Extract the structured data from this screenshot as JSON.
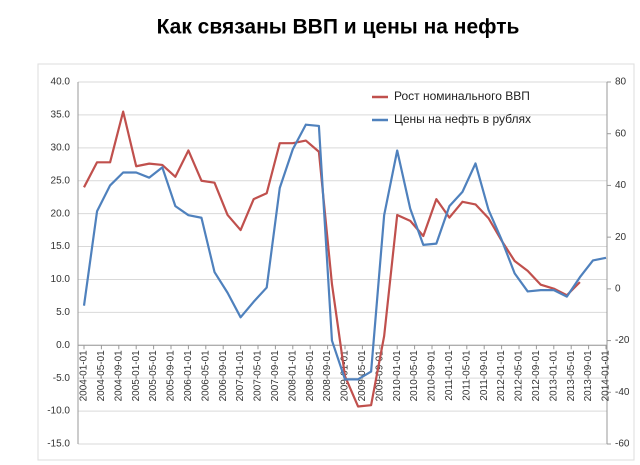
{
  "chart_data": {
    "type": "line",
    "title": "Как связаны ВВП и цены на нефть",
    "x": [
      "2004-01-01",
      "2004-04-01",
      "2004-07-01",
      "2004-10-01",
      "2005-01-01",
      "2005-04-01",
      "2005-07-01",
      "2005-10-01",
      "2006-01-01",
      "2006-04-01",
      "2006-07-01",
      "2006-10-01",
      "2007-01-01",
      "2007-04-01",
      "2007-07-01",
      "2007-10-01",
      "2008-01-01",
      "2008-04-01",
      "2008-07-01",
      "2008-10-01",
      "2009-01-01",
      "2009-04-01",
      "2009-07-01",
      "2009-10-01",
      "2010-01-01",
      "2010-04-01",
      "2010-07-01",
      "2010-10-01",
      "2011-01-01",
      "2011-04-01",
      "2011-07-01",
      "2011-10-01",
      "2012-01-01",
      "2012-04-01",
      "2012-07-01",
      "2012-10-01",
      "2013-01-01",
      "2013-04-01",
      "2013-07-01",
      "2013-10-01",
      "2014-01-01"
    ],
    "xlim": [
      "2004-01-01",
      "2014-01-01"
    ],
    "xticks": [
      "2004-01-01",
      "2004-05-01",
      "2004-09-01",
      "2005-01-01",
      "2005-05-01",
      "2005-09-01",
      "2006-01-01",
      "2006-05-01",
      "2006-09-01",
      "2007-01-01",
      "2007-05-01",
      "2007-09-01",
      "2008-01-01",
      "2008-05-01",
      "2008-09-01",
      "2009-01-01",
      "2009-05-01",
      "2009-09-01",
      "2010-01-01",
      "2010-05-01",
      "2010-09-01",
      "2011-01-01",
      "2011-05-01",
      "2011-09-01",
      "2012-01-01",
      "2012-05-01",
      "2012-09-01",
      "2013-01-01",
      "2013-05-01",
      "2013-09-01",
      "2014-01-01"
    ],
    "series": [
      {
        "name": "Рост номинального ВВП",
        "color": "#c0504d",
        "values": [
          24,
          27.8,
          27.8,
          35.5,
          27.2,
          27.6,
          27.4,
          25.6,
          29.6,
          25,
          24.7,
          19.8,
          17.5,
          22.2,
          23.1,
          30.7,
          30.7,
          31.1,
          29.4,
          9.3,
          -4.7,
          -9.3,
          -9.1,
          1.4,
          19.8,
          18.9,
          16.6,
          22.2,
          19.4,
          21.8,
          21.4,
          19.3,
          15.9,
          12.8,
          11.3,
          9.2,
          8.6,
          7.6,
          9.6,
          null,
          null
        ]
      },
      {
        "name": "Цены на нефть в рублях",
        "color": "#4f81bd",
        "axis": "y2",
        "values": [
          -6.5,
          30,
          40,
          45,
          45,
          43,
          47,
          32,
          28.5,
          27.5,
          6.5,
          -1.5,
          -11,
          -5,
          0.5,
          39,
          54,
          63.5,
          63,
          -20,
          -35,
          -35,
          -32,
          28.5,
          53.5,
          31,
          17,
          17.5,
          32,
          37.5,
          48.5,
          30.5,
          19,
          6,
          -1,
          -0.5,
          -0.5,
          -3,
          4.5,
          11,
          12
        ]
      }
    ],
    "ylim": [
      -15,
      40
    ],
    "yticks": [
      {
        "value": -15,
        "label": "-15.0"
      },
      {
        "value": -10,
        "label": "-10.0"
      },
      {
        "value": -5,
        "label": "-5.0"
      },
      {
        "value": 0,
        "label": "0.0"
      },
      {
        "value": 5,
        "label": "5.0"
      },
      {
        "value": 10,
        "label": "10.0"
      },
      {
        "value": 15,
        "label": "15.0"
      },
      {
        "value": 20,
        "label": "20.0"
      },
      {
        "value": 25,
        "label": "25.0"
      },
      {
        "value": 30,
        "label": "30.0"
      },
      {
        "value": 35,
        "label": "35.0"
      },
      {
        "value": 40,
        "label": "40.0"
      }
    ],
    "y2lim": [
      -60,
      80
    ],
    "y2ticks": [
      -60,
      -40,
      -20,
      0,
      20,
      40,
      60,
      80
    ],
    "grid": true,
    "legend": "top-right"
  }
}
